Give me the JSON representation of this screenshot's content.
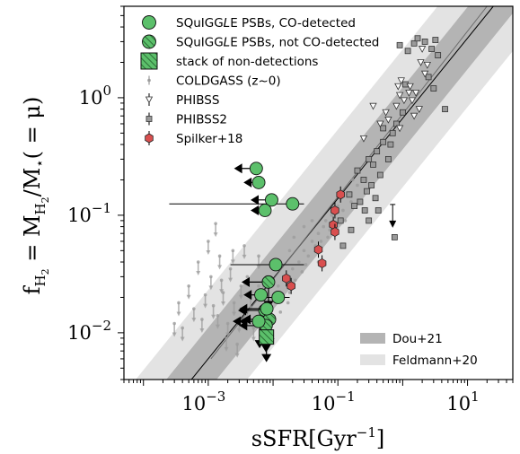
{
  "chart_data": {
    "type": "scatter",
    "x_scale": "log",
    "y_scale": "log",
    "xlim": [
      5e-05,
      50
    ],
    "ylim": [
      0.004,
      6
    ],
    "xlabel_main": "sSFR[Gyr",
    "xlabel_sup": "−1",
    "xlabel_end": "]",
    "ylabel_lead": "f",
    "ylabel_sub": "H",
    "ylabel_subsub": "2",
    "ylabel_mid": " = M",
    "ylabel_mid_sub": "H",
    "ylabel_mid_subsub": "2",
    "ylabel_tail": "/M",
    "ylabel_star": "⋆",
    "ylabel_end": "( = μ)",
    "x_ticks": [
      {
        "value": 0.001,
        "base": "10",
        "exp": "−3"
      },
      {
        "value": 0.1,
        "base": "10",
        "exp": "−1"
      },
      {
        "value": 10,
        "base": "10",
        "exp": "1"
      }
    ],
    "y_ticks": [
      {
        "value": 0.01,
        "base": "10",
        "exp": "−2"
      },
      {
        "value": 0.1,
        "base": "10",
        "exp": "−1"
      },
      {
        "value": 1,
        "base": "10",
        "exp": "0"
      }
    ],
    "legend": [
      {
        "label_pre": "SQuIGG",
        "label_ital": "L",
        "label_post": "E PSBs, CO-detected",
        "marker": "circle-green"
      },
      {
        "label_pre": "SQuIGG",
        "label_ital": "L",
        "label_post": "E PSBs, not CO-detected",
        "marker": "circle-hatched"
      },
      {
        "label_pre": "stack of non-detections",
        "label_ital": "",
        "label_post": "",
        "marker": "square-hatched"
      },
      {
        "label_pre": "COLDGASS (z~0)",
        "label_ital": "",
        "label_post": "",
        "marker": "small-arrow-grey"
      },
      {
        "label_pre": "PHIBSS",
        "label_ital": "",
        "label_post": "",
        "marker": "triangle-down"
      },
      {
        "label_pre": "PHIBSS2",
        "label_ital": "",
        "label_post": "",
        "marker": "square-grey"
      },
      {
        "label_pre": "Spilker+18",
        "label_ital": "",
        "label_post": "",
        "marker": "hexagon-red"
      }
    ],
    "legend2": [
      {
        "label": "Dou+21",
        "color": "#b4b4b4"
      },
      {
        "label": "Feldmann+20",
        "color": "#e3e3e3"
      }
    ],
    "colors": {
      "green": "#5cc06b",
      "red": "#d94f4f",
      "grey_square": "#9a9a9a",
      "dou_band": "#b4b4b4",
      "feldmann_band": "#e3e3e3",
      "coldgass": "#9c9c9c"
    },
    "bands": {
      "feldmann": {
        "x": [
          0.0005,
          50
        ],
        "lo": [
          0.004,
          4.2
        ],
        "hi": [
          0.0045,
          6
        ]
      },
      "dou": {
        "x": [
          0.0005,
          50
        ],
        "lo": [
          0.0045,
          3.2
        ],
        "hi": [
          0.009,
          6
        ]
      }
    },
    "relation_lines": [
      {
        "x": [
          0.00055,
          25
        ],
        "y": [
          0.004,
          6
        ],
        "color": "#000000"
      },
      {
        "x": [
          0.0011,
          20
        ],
        "y": [
          0.006,
          6
        ],
        "color": "#6e6e6e"
      }
    ],
    "squiggle_detected": [
      {
        "x": 0.0055,
        "y": 0.25,
        "xlim_to": 0.0025
      },
      {
        "x": 0.006,
        "y": 0.19,
        "xlim_to": 0.0035
      },
      {
        "x": 0.0095,
        "y": 0.135,
        "xlim_to": 0.0045
      },
      {
        "x": 0.0075,
        "y": 0.11,
        "xlim_to": 0.0045
      },
      {
        "x": 0.02,
        "y": 0.125,
        "xerr": [
          0.00025,
          0.03
        ]
      },
      {
        "x": 0.011,
        "y": 0.038,
        "xerr": [
          0.0022,
          0.03
        ]
      },
      {
        "x": 0.0065,
        "y": 0.021,
        "xlim_to": 0.0035
      },
      {
        "x": 0.012,
        "y": 0.02,
        "xerr": [
          0.006,
          0.018
        ]
      },
      {
        "x": 0.008,
        "y": 0.016,
        "xlim_to": 0.003
      },
      {
        "x": 0.006,
        "y": 0.0125,
        "xlim_to": 0.003
      }
    ],
    "squiggle_nondetected": [
      {
        "x": 0.0085,
        "y": 0.027
      },
      {
        "x": 0.0075,
        "y": 0.0155
      },
      {
        "x": 0.0062,
        "y": 0.0125
      },
      {
        "x": 0.0088,
        "y": 0.013
      },
      {
        "x": 0.0078,
        "y": 0.0115
      }
    ],
    "stack": {
      "x": 0.0079,
      "y": 0.0092
    },
    "spilker": [
      {
        "x": 0.11,
        "y": 0.15
      },
      {
        "x": 0.09,
        "y": 0.11
      },
      {
        "x": 0.085,
        "y": 0.083
      },
      {
        "x": 0.09,
        "y": 0.072
      },
      {
        "x": 0.05,
        "y": 0.051
      },
      {
        "x": 0.057,
        "y": 0.039
      },
      {
        "x": 0.016,
        "y": 0.029
      },
      {
        "x": 0.019,
        "y": 0.025
      }
    ],
    "phibss": [
      {
        "x": 0.7,
        "y": 0.1,
        "ul": true
      },
      {
        "x": 0.95,
        "y": 1.4
      },
      {
        "x": 0.85,
        "y": 1.25
      },
      {
        "x": 0.9,
        "y": 1.05
      },
      {
        "x": 1.05,
        "y": 0.95
      },
      {
        "x": 1.25,
        "y": 1.1
      },
      {
        "x": 1.4,
        "y": 0.95
      },
      {
        "x": 1.6,
        "y": 1.1
      },
      {
        "x": 2.0,
        "y": 2.6
      },
      {
        "x": 1.9,
        "y": 2.0
      },
      {
        "x": 2.2,
        "y": 1.6
      },
      {
        "x": 0.8,
        "y": 0.85
      },
      {
        "x": 0.55,
        "y": 0.75
      },
      {
        "x": 0.35,
        "y": 0.85
      },
      {
        "x": 1.3,
        "y": 1.25
      },
      {
        "x": 0.6,
        "y": 0.65
      },
      {
        "x": 0.45,
        "y": 0.6
      },
      {
        "x": 0.9,
        "y": 0.55
      },
      {
        "x": 1.5,
        "y": 0.7
      },
      {
        "x": 1.8,
        "y": 0.8
      },
      {
        "x": 2.4,
        "y": 1.9
      },
      {
        "x": 0.25,
        "y": 0.45
      }
    ],
    "phibss2": [
      {
        "x": 0.15,
        "y": 0.15
      },
      {
        "x": 0.11,
        "y": 0.09
      },
      {
        "x": 0.2,
        "y": 0.24
      },
      {
        "x": 0.25,
        "y": 0.2
      },
      {
        "x": 0.3,
        "y": 0.3
      },
      {
        "x": 0.35,
        "y": 0.27
      },
      {
        "x": 0.4,
        "y": 0.35
      },
      {
        "x": 0.5,
        "y": 0.42
      },
      {
        "x": 0.18,
        "y": 0.12
      },
      {
        "x": 0.22,
        "y": 0.13
      },
      {
        "x": 0.28,
        "y": 0.16
      },
      {
        "x": 0.33,
        "y": 0.18
      },
      {
        "x": 0.45,
        "y": 0.22
      },
      {
        "x": 0.6,
        "y": 0.3
      },
      {
        "x": 0.7,
        "y": 0.5
      },
      {
        "x": 0.8,
        "y": 0.6
      },
      {
        "x": 0.65,
        "y": 0.4
      },
      {
        "x": 0.5,
        "y": 0.55
      },
      {
        "x": 0.12,
        "y": 0.055
      },
      {
        "x": 0.16,
        "y": 0.075
      },
      {
        "x": 0.26,
        "y": 0.11
      },
      {
        "x": 0.38,
        "y": 0.14
      },
      {
        "x": 1.1,
        "y": 1.3
      },
      {
        "x": 1.5,
        "y": 2.9
      },
      {
        "x": 1.7,
        "y": 3.2
      },
      {
        "x": 2.2,
        "y": 3.0
      },
      {
        "x": 2.8,
        "y": 2.6
      },
      {
        "x": 3.2,
        "y": 3.1
      },
      {
        "x": 3.5,
        "y": 2.3
      },
      {
        "x": 0.9,
        "y": 2.8
      },
      {
        "x": 1.2,
        "y": 2.5
      },
      {
        "x": 2.5,
        "y": 1.5
      },
      {
        "x": 4.5,
        "y": 0.8
      },
      {
        "x": 0.75,
        "y": 0.065
      },
      {
        "x": 3.0,
        "y": 1.2
      },
      {
        "x": 1.0,
        "y": 0.75
      },
      {
        "x": 0.3,
        "y": 0.09
      },
      {
        "x": 0.42,
        "y": 0.11
      }
    ],
    "coldgass": [
      {
        "x": 0.0003,
        "y": 0.012,
        "ul": true
      },
      {
        "x": 0.00035,
        "y": 0.018,
        "ul": true
      },
      {
        "x": 0.0004,
        "y": 0.011,
        "ul": true
      },
      {
        "x": 0.0005,
        "y": 0.025,
        "ul": true
      },
      {
        "x": 0.0006,
        "y": 0.016,
        "ul": true
      },
      {
        "x": 0.0007,
        "y": 0.04,
        "ul": true
      },
      {
        "x": 0.0008,
        "y": 0.013,
        "ul": true
      },
      {
        "x": 0.0009,
        "y": 0.021,
        "ul": true
      },
      {
        "x": 0.001,
        "y": 0.06,
        "ul": true
      },
      {
        "x": 0.0011,
        "y": 0.03,
        "ul": true
      },
      {
        "x": 0.0012,
        "y": 0.017,
        "ul": true
      },
      {
        "x": 0.0013,
        "y": 0.085,
        "ul": true
      },
      {
        "x": 0.0015,
        "y": 0.045,
        "ul": true
      },
      {
        "x": 0.0017,
        "y": 0.022,
        "ul": true
      },
      {
        "x": 0.002,
        "y": 0.012,
        "ul": true
      },
      {
        "x": 0.0022,
        "y": 0.035,
        "ul": true
      },
      {
        "x": 0.0025,
        "y": 0.018,
        "ul": true
      },
      {
        "x": 0.003,
        "y": 0.013,
        "ul": true
      },
      {
        "x": 0.0032,
        "y": 0.025,
        "ul": true
      },
      {
        "x": 0.0036,
        "y": 0.055,
        "ul": true
      },
      {
        "x": 0.004,
        "y": 0.015,
        "ul": true
      },
      {
        "x": 0.0045,
        "y": 0.02,
        "ul": true
      },
      {
        "x": 0.005,
        "y": 0.011,
        "ul": true
      },
      {
        "x": 0.0028,
        "y": 0.008,
        "ul": true
      },
      {
        "x": 0.0019,
        "y": 0.009,
        "ul": true
      },
      {
        "x": 0.0014,
        "y": 0.014,
        "ul": true
      },
      {
        "x": 0.006,
        "y": 0.045,
        "ul": true
      },
      {
        "x": 0.007,
        "y": 0.028,
        "ul": true
      },
      {
        "x": 0.0016,
        "y": 0.028,
        "ul": true
      },
      {
        "x": 0.0024,
        "y": 0.05,
        "ul": true
      },
      {
        "x": 0.01,
        "y": 0.02
      },
      {
        "x": 0.012,
        "y": 0.025
      },
      {
        "x": 0.015,
        "y": 0.03
      },
      {
        "x": 0.018,
        "y": 0.022
      },
      {
        "x": 0.02,
        "y": 0.035
      },
      {
        "x": 0.025,
        "y": 0.04
      },
      {
        "x": 0.03,
        "y": 0.05
      },
      {
        "x": 0.035,
        "y": 0.045
      },
      {
        "x": 0.04,
        "y": 0.06
      },
      {
        "x": 0.05,
        "y": 0.07
      },
      {
        "x": 0.06,
        "y": 0.08
      },
      {
        "x": 0.07,
        "y": 0.065
      },
      {
        "x": 0.08,
        "y": 0.1
      },
      {
        "x": 0.1,
        "y": 0.12
      },
      {
        "x": 0.12,
        "y": 0.11
      },
      {
        "x": 0.14,
        "y": 0.15
      },
      {
        "x": 0.16,
        "y": 0.13
      },
      {
        "x": 0.2,
        "y": 0.18
      },
      {
        "x": 0.25,
        "y": 0.2
      },
      {
        "x": 0.022,
        "y": 0.028
      },
      {
        "x": 0.028,
        "y": 0.033
      },
      {
        "x": 0.045,
        "y": 0.055
      },
      {
        "x": 0.065,
        "y": 0.09
      },
      {
        "x": 0.09,
        "y": 0.085
      },
      {
        "x": 0.11,
        "y": 0.14
      },
      {
        "x": 0.013,
        "y": 0.015
      },
      {
        "x": 0.017,
        "y": 0.018
      },
      {
        "x": 0.032,
        "y": 0.038
      },
      {
        "x": 0.055,
        "y": 0.06
      },
      {
        "x": 0.075,
        "y": 0.075
      },
      {
        "x": 0.009,
        "y": 0.028
      },
      {
        "x": 0.04,
        "y": 0.09
      },
      {
        "x": 0.03,
        "y": 0.08
      },
      {
        "x": 0.018,
        "y": 0.05
      },
      {
        "x": 0.05,
        "y": 0.04
      },
      {
        "x": 0.13,
        "y": 0.09
      },
      {
        "x": 0.17,
        "y": 0.2
      },
      {
        "x": 0.021,
        "y": 0.065
      },
      {
        "x": 0.011,
        "y": 0.04
      },
      {
        "x": 0.008,
        "y": 0.03
      },
      {
        "x": 0.006,
        "y": 0.025
      },
      {
        "x": 0.004,
        "y": 0.03
      }
    ]
  }
}
